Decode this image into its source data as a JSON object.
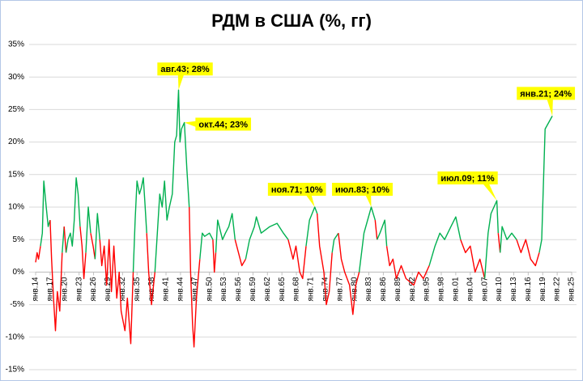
{
  "chart_data": {
    "type": "line",
    "title": "РДМ в США (%, гг)",
    "xlim": [
      1914,
      2025
    ],
    "xticks": [
      {
        "value": 1914,
        "label": "янв.14"
      },
      {
        "value": 1917,
        "label": "янв.17"
      },
      {
        "value": 1920,
        "label": "янв.20"
      },
      {
        "value": 1923,
        "label": "янв.23"
      },
      {
        "value": 1926,
        "label": "янв.26"
      },
      {
        "value": 1929,
        "label": "янв.29"
      },
      {
        "value": 1932,
        "label": "янв.32"
      },
      {
        "value": 1935,
        "label": "янв.35"
      },
      {
        "value": 1938,
        "label": "янв.38"
      },
      {
        "value": 1941,
        "label": "янв.41"
      },
      {
        "value": 1944,
        "label": "янв.44"
      },
      {
        "value": 1947,
        "label": "янв.47"
      },
      {
        "value": 1950,
        "label": "янв.50"
      },
      {
        "value": 1953,
        "label": "янв.53"
      },
      {
        "value": 1956,
        "label": "янв.56"
      },
      {
        "value": 1959,
        "label": "янв.59"
      },
      {
        "value": 1962,
        "label": "янв.62"
      },
      {
        "value": 1965,
        "label": "янв.65"
      },
      {
        "value": 1968,
        "label": "янв.68"
      },
      {
        "value": 1971,
        "label": "янв.71"
      },
      {
        "value": 1974,
        "label": "янв.74"
      },
      {
        "value": 1977,
        "label": "янв.77"
      },
      {
        "value": 1980,
        "label": "янв.80"
      },
      {
        "value": 1983,
        "label": "янв.83"
      },
      {
        "value": 1986,
        "label": "янв.86"
      },
      {
        "value": 1989,
        "label": "янв.89"
      },
      {
        "value": 1992,
        "label": "янв.92"
      },
      {
        "value": 1995,
        "label": "янв.95"
      },
      {
        "value": 1998,
        "label": "янв.98"
      },
      {
        "value": 2001,
        "label": "янв.01"
      },
      {
        "value": 2004,
        "label": "янв.04"
      },
      {
        "value": 2007,
        "label": "янв.07"
      },
      {
        "value": 2010,
        "label": "янв.10"
      },
      {
        "value": 2013,
        "label": "янв.13"
      },
      {
        "value": 2016,
        "label": "янв.16"
      },
      {
        "value": 2019,
        "label": "янв.19"
      },
      {
        "value": 2022,
        "label": "янв.22"
      },
      {
        "value": 2025,
        "label": "янв.25"
      }
    ],
    "ylim": [
      -15,
      35
    ],
    "yticks": [
      {
        "value": -15,
        "label": "-15%"
      },
      {
        "value": -10,
        "label": "-10%"
      },
      {
        "value": -5,
        "label": "-5%"
      },
      {
        "value": 0,
        "label": "0%"
      },
      {
        "value": 5,
        "label": "5%"
      },
      {
        "value": 10,
        "label": "10%"
      },
      {
        "value": 15,
        "label": "15%"
      },
      {
        "value": 20,
        "label": "20%"
      },
      {
        "value": 25,
        "label": "25%"
      },
      {
        "value": 30,
        "label": "30%"
      },
      {
        "value": 35,
        "label": "35%"
      }
    ],
    "grid": true,
    "x": [
      1914.0,
      1914.3,
      1914.6,
      1915.0,
      1915.4,
      1915.7,
      1916.2,
      1916.6,
      1917.0,
      1917.3,
      1917.7,
      1918.1,
      1918.5,
      1919.0,
      1919.5,
      1919.9,
      1920.3,
      1920.7,
      1921.2,
      1921.6,
      1922.0,
      1922.4,
      1922.8,
      1923.2,
      1923.6,
      1924.0,
      1924.4,
      1924.9,
      1925.4,
      1925.9,
      1926.3,
      1926.8,
      1927.3,
      1927.7,
      1928.2,
      1928.7,
      1929.2,
      1929.7,
      1930.2,
      1930.8,
      1931.3,
      1931.7,
      1932.5,
      1933.0,
      1933.7,
      1934.2,
      1934.6,
      1935.0,
      1935.5,
      1935.9,
      1936.3,
      1936.6,
      1937.0,
      1937.4,
      1938.0,
      1938.7,
      1939.2,
      1939.7,
      1940.2,
      1940.7,
      1941.2,
      1941.7,
      1942.3,
      1942.8,
      1943.2,
      1943.6,
      1943.9,
      1944.2,
      1944.8,
      1945.3,
      1945.8,
      1946.1,
      1946.5,
      1946.8,
      1947.3,
      1948.0,
      1948.5,
      1949.0,
      1950.0,
      1950.7,
      1951.0,
      1951.3,
      1951.7,
      1952.7,
      1953.3,
      1954.0,
      1954.7,
      1955.3,
      1956.0,
      1956.7,
      1957.5,
      1958.3,
      1959.3,
      1959.7,
      1960.7,
      1962.5,
      1964.0,
      1965.3,
      1966.3,
      1967.3,
      1967.9,
      1968.7,
      1969.3,
      1970.0,
      1970.7,
      1971.8,
      1972.3,
      1972.8,
      1973.7,
      1974.2,
      1974.8,
      1975.4,
      1975.8,
      1976.7,
      1977.3,
      1978.0,
      1979.0,
      1979.7,
      1980.3,
      1981.0,
      1982.0,
      1983.5,
      1984.3,
      1984.7,
      1985.3,
      1986.3,
      1986.7,
      1987.3,
      1988.0,
      1988.7,
      1989.7,
      1990.7,
      1992.3,
      1993.3,
      1994.3,
      1995.5,
      1996.7,
      1997.7,
      1998.7,
      2000.0,
      2001.0,
      2002.0,
      2003.0,
      2004.0,
      2005.0,
      2006.0,
      2007.0,
      2007.7,
      2008.3,
      2009.5,
      2009.8,
      2010.2,
      2010.6,
      2011.6,
      2012.6,
      2013.6,
      2014.5,
      2015.5,
      2016.5,
      2017.5,
      2018.3,
      2018.8,
      2019.5,
      2021.0
    ],
    "series": [
      {
        "values": [
          1.5,
          3,
          2,
          4,
          6,
          14,
          10,
          7,
          8,
          2,
          -4,
          -9,
          -3,
          -6,
          3,
          7,
          3,
          5,
          6,
          4,
          8,
          14.5,
          12,
          7,
          4,
          -1,
          3,
          10,
          6,
          4,
          2,
          9,
          5,
          1,
          4,
          -2,
          5,
          -3,
          4,
          -4,
          0,
          -6,
          -9,
          -4,
          -11,
          0,
          8,
          14,
          12,
          13,
          14.5,
          11,
          6,
          0,
          -5,
          0,
          6,
          12,
          10,
          14,
          8,
          10,
          12,
          20,
          21,
          28,
          20,
          22,
          23,
          16,
          10,
          0,
          -8,
          -11.5,
          -4,
          2,
          6,
          5.5,
          6,
          5,
          0,
          3,
          8,
          5,
          6,
          7,
          9,
          5,
          3,
          1,
          2,
          5,
          7,
          8.5,
          6,
          7,
          7.5,
          6,
          5,
          2,
          4,
          0,
          -1,
          4,
          8,
          10,
          9,
          4,
          0,
          -5,
          -3,
          3,
          5,
          6,
          2,
          0,
          -2,
          -6.5,
          -2,
          0,
          6,
          10,
          8,
          5,
          6,
          8,
          4,
          1,
          2,
          -1,
          1,
          -1,
          -2,
          0,
          -1,
          1,
          4,
          6,
          5,
          7,
          8.5,
          5,
          3,
          4,
          0,
          2,
          -1,
          6,
          9,
          11,
          6,
          3,
          7,
          5,
          6,
          5,
          3,
          5,
          2,
          1,
          3,
          5,
          22,
          24
        ],
        "colors": [
          "#ff0000",
          "#ff0000",
          "#ff0000",
          "#ff0000",
          "#00b050",
          "#00b050",
          "#00b050",
          "#00b050",
          "#00b050",
          "#ff0000",
          "#ff0000",
          "#ff0000",
          "#ff0000",
          "#ff0000",
          "#ff0000",
          "#00b050",
          "#ff0000",
          "#00b050",
          "#00b050",
          "#00b050",
          "#00b050",
          "#00b050",
          "#00b050",
          "#00b050",
          "#ff0000",
          "#ff0000",
          "#ff0000",
          "#00b050",
          "#00b050",
          "#ff0000",
          "#ff0000",
          "#00b050",
          "#00b050",
          "#ff0000",
          "#ff0000",
          "#ff0000",
          "#ff0000",
          "#ff0000",
          "#ff0000",
          "#ff0000",
          "#ff0000",
          "#ff0000",
          "#ff0000",
          "#ff0000",
          "#ff0000",
          "#ff0000",
          "#00b050",
          "#00b050",
          "#00b050",
          "#00b050",
          "#00b050",
          "#00b050",
          "#00b050",
          "#ff0000",
          "#ff0000",
          "#ff0000",
          "#00b050",
          "#00b050",
          "#00b050",
          "#00b050",
          "#00b050",
          "#00b050",
          "#00b050",
          "#00b050",
          "#00b050",
          "#00b050",
          "#00b050",
          "#00b050",
          "#00b050",
          "#00b050",
          "#00b050",
          "#ff0000",
          "#ff0000",
          "#ff0000",
          "#ff0000",
          "#ff0000",
          "#00b050",
          "#00b050",
          "#00b050",
          "#00b050",
          "#ff0000",
          "#ff0000",
          "#00b050",
          "#00b050",
          "#00b050",
          "#00b050",
          "#00b050",
          "#00b050",
          "#ff0000",
          "#ff0000",
          "#ff0000",
          "#00b050",
          "#00b050",
          "#00b050",
          "#00b050",
          "#00b050",
          "#00b050",
          "#00b050",
          "#00b050",
          "#ff0000",
          "#ff0000",
          "#ff0000",
          "#ff0000",
          "#ff0000",
          "#00b050",
          "#00b050",
          "#00b050",
          "#ff0000",
          "#ff0000",
          "#ff0000",
          "#ff0000",
          "#ff0000",
          "#00b050",
          "#00b050",
          "#ff0000",
          "#ff0000",
          "#ff0000",
          "#ff0000",
          "#ff0000",
          "#ff0000",
          "#00b050",
          "#00b050",
          "#00b050",
          "#ff0000",
          "#00b050",
          "#00b050",
          "#00b050",
          "#ff0000",
          "#ff0000",
          "#ff0000",
          "#ff0000",
          "#ff0000",
          "#ff0000",
          "#ff0000",
          "#ff0000",
          "#ff0000",
          "#00b050",
          "#00b050",
          "#00b050",
          "#00b050",
          "#00b050",
          "#00b050",
          "#ff0000",
          "#ff0000",
          "#ff0000",
          "#ff0000",
          "#ff0000",
          "#00b050",
          "#00b050",
          "#00b050",
          "#00b050",
          "#ff0000",
          "#00b050",
          "#00b050",
          "#00b050",
          "#00b050",
          "#ff0000",
          "#ff0000",
          "#ff0000",
          "#ff0000",
          "#ff0000",
          "#00b050",
          "#00b050",
          "#00b050"
        ]
      }
    ],
    "annotations": [
      {
        "text": "авг.43; 28%",
        "x": 1943.6,
        "y": 28
      },
      {
        "text": "окт.44; 23%",
        "x": 1944.8,
        "y": 23
      },
      {
        "text": "ноя.71; 10%",
        "x": 1971.8,
        "y": 10
      },
      {
        "text": "июл.83; 10%",
        "x": 1983.5,
        "y": 10
      },
      {
        "text": "июл.09; 11%",
        "x": 2009.5,
        "y": 11
      },
      {
        "text": "янв.21; 24%",
        "x": 2021.0,
        "y": 24
      }
    ],
    "annotation_color": "#ffff00"
  }
}
